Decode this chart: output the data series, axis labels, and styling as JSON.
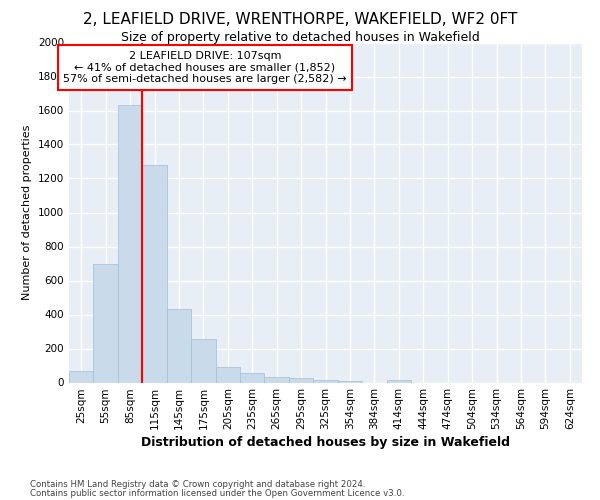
{
  "title": "2, LEAFIELD DRIVE, WRENTHORPE, WAKEFIELD, WF2 0FT",
  "subtitle": "Size of property relative to detached houses in Wakefield",
  "xlabel": "Distribution of detached houses by size in Wakefield",
  "ylabel": "Number of detached properties",
  "bar_color": "#c9daea",
  "bar_edge_color": "#a0bfd4",
  "background_color": "#e8eef5",
  "grid_color": "#ffffff",
  "categories": [
    "25sqm",
    "55sqm",
    "85sqm",
    "115sqm",
    "145sqm",
    "175sqm",
    "205sqm",
    "235sqm",
    "265sqm",
    "295sqm",
    "325sqm",
    "354sqm",
    "384sqm",
    "414sqm",
    "444sqm",
    "474sqm",
    "504sqm",
    "534sqm",
    "564sqm",
    "594sqm",
    "624sqm"
  ],
  "values": [
    65,
    695,
    1630,
    1280,
    435,
    255,
    90,
    55,
    35,
    25,
    15,
    10,
    0,
    15,
    0,
    0,
    0,
    0,
    0,
    0,
    0
  ],
  "property_label": "2 LEAFIELD DRIVE: 107sqm",
  "annotation_line1": "← 41% of detached houses are smaller (1,852)",
  "annotation_line2": "57% of semi-detached houses are larger (2,582) →",
  "vline_x": 2.5,
  "ylim": [
    0,
    2000
  ],
  "yticks": [
    0,
    200,
    400,
    600,
    800,
    1000,
    1200,
    1400,
    1600,
    1800,
    2000
  ],
  "title_fontsize": 11,
  "subtitle_fontsize": 9,
  "xlabel_fontsize": 9,
  "ylabel_fontsize": 8,
  "tick_fontsize": 7.5,
  "footnote1": "Contains HM Land Registry data © Crown copyright and database right 2024.",
  "footnote2": "Contains public sector information licensed under the Open Government Licence v3.0."
}
